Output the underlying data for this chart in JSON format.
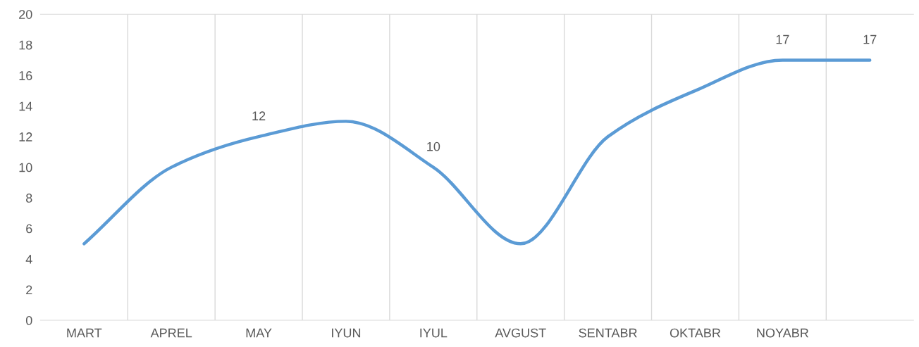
{
  "chart_data": {
    "type": "line",
    "categories": [
      "MART",
      "APREL",
      "MAY",
      "IYUN",
      "IYUL",
      "AVGUST",
      "SENTABR",
      "OKTABR",
      "NOYABR",
      null
    ],
    "series": [
      {
        "color": "#5b9bd5",
        "values": [
          5,
          10,
          12,
          13,
          10,
          5,
          12,
          15,
          17,
          17
        ],
        "value_labels": [
          null,
          null,
          "12",
          null,
          "10",
          null,
          null,
          null,
          "17",
          "17"
        ]
      }
    ],
    "ylim": [
      0,
      20
    ],
    "yticks": [
      0,
      2,
      4,
      6,
      8,
      10,
      12,
      14,
      16,
      18,
      20
    ],
    "grid": "x",
    "marker": "none",
    "line_style": "solid",
    "legend": false
  }
}
